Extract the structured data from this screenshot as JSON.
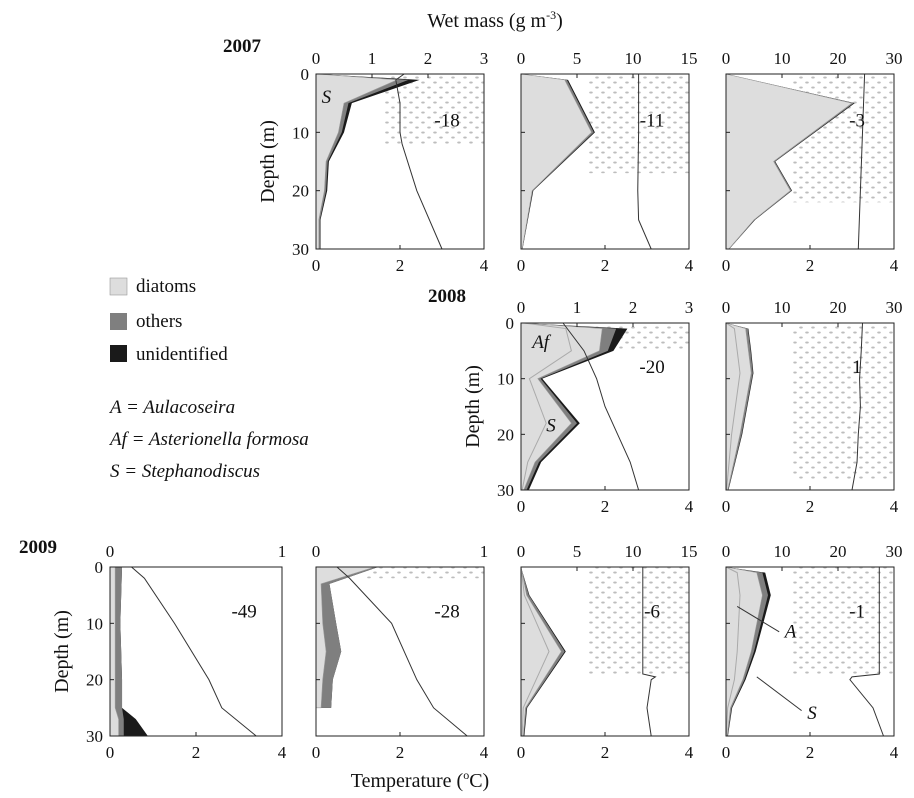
{
  "figure": {
    "x_top_label": "Wet mass (g m",
    "x_top_label_sup": "-3",
    "x_top_label_end": ")",
    "x_bottom_label": "Temperature (",
    "x_bottom_label_sup": "o",
    "x_bottom_label_end": "C)",
    "y_label": "Depth (m)",
    "years": [
      "2007",
      "2008",
      "2009"
    ]
  },
  "legend": {
    "items": [
      {
        "label": "diatoms",
        "color": "#dddddd"
      },
      {
        "label": "others",
        "color": "#7f7f7f"
      },
      {
        "label": "unidentified",
        "color": "#1a1a1a"
      }
    ]
  },
  "abbreviations": [
    {
      "abbr": "A",
      "name": "Aulacoseira"
    },
    {
      "abbr": "Af",
      "name": "Asterionella formosa"
    },
    {
      "abbr": "S",
      "name": "Stephanodiscus"
    }
  ],
  "colors": {
    "diatoms": "#dddddd",
    "others": "#7f7f7f",
    "unidentified": "#1a1a1a",
    "ice_dots": "#bdbdbd",
    "temperature_line": "#333333",
    "species_line": "#aaaaaa"
  },
  "chart_data": [
    {
      "panel": "2007-1",
      "type": "area",
      "year": "2007",
      "temp_xlim": [
        0,
        4
      ],
      "temp_ticks": [
        "0",
        "2",
        "4"
      ],
      "mass_xlim": [
        0,
        3
      ],
      "mass_ticks": [
        "0",
        "1",
        "2",
        "3"
      ],
      "ylim": [
        0,
        30
      ],
      "y_ticks": [
        "0",
        "10",
        "20",
        "30"
      ],
      "ice_shade_depth": [
        0,
        12
      ],
      "annotation": "-18",
      "species_labels": [
        {
          "text": "S",
          "mass": 0.1,
          "depth": 5
        }
      ],
      "depth": [
        0,
        1,
        5,
        10,
        15,
        20,
        25,
        30
      ],
      "diatoms_cum": [
        0,
        1.45,
        0.5,
        0.4,
        0.18,
        0.15,
        0.05,
        0.05
      ],
      "others_cum": [
        0,
        1.65,
        0.58,
        0.46,
        0.21,
        0.18,
        0.07,
        0.07
      ],
      "unidentified_cum": [
        0,
        1.85,
        0.64,
        0.5,
        0.23,
        0.2,
        0.08,
        0.08
      ],
      "temp_depth": [
        0,
        1,
        5,
        10,
        12,
        20,
        30
      ],
      "temperature": [
        2.1,
        1.9,
        2.0,
        2.0,
        2.05,
        2.4,
        3.0
      ]
    },
    {
      "panel": "2007-2",
      "type": "area",
      "year": "2007",
      "temp_xlim": [
        0,
        4
      ],
      "temp_ticks": [
        "0",
        "2",
        "4"
      ],
      "mass_xlim": [
        0,
        15
      ],
      "mass_ticks": [
        "0",
        "5",
        "10",
        "15"
      ],
      "ylim": [
        0,
        30
      ],
      "y_ticks": [
        "0",
        "10",
        "20",
        "30"
      ],
      "ice_shade_depth": [
        0,
        17
      ],
      "annotation": "-11",
      "depth": [
        0,
        1,
        10,
        20,
        30
      ],
      "diatoms_cum": [
        0,
        3.9,
        6.3,
        1.0,
        0.1
      ],
      "others_cum": [
        0,
        4.1,
        6.5,
        1.05,
        0.12
      ],
      "unidentified_cum": [
        0,
        4.2,
        6.6,
        1.1,
        0.14
      ],
      "temp_depth": [
        0,
        10,
        20,
        25,
        30
      ],
      "temperature": [
        2.8,
        2.8,
        2.78,
        2.8,
        3.1
      ]
    },
    {
      "panel": "2007-3",
      "type": "area",
      "year": "2007",
      "temp_xlim": [
        0,
        4
      ],
      "temp_ticks": [
        "0",
        "2",
        "4"
      ],
      "mass_xlim": [
        0,
        30
      ],
      "mass_ticks": [
        "0",
        "10",
        "20",
        "30"
      ],
      "ylim": [
        0,
        30
      ],
      "y_ticks": [
        "0",
        "10",
        "20",
        "30"
      ],
      "ice_shade_depth": [
        0,
        22
      ],
      "annotation": "-3",
      "depth": [
        0,
        5,
        15,
        20,
        25,
        30
      ],
      "diatoms_cum": [
        0,
        22.5,
        8.5,
        11.5,
        5.0,
        0.5
      ],
      "others_cum": [
        0,
        22.8,
        8.7,
        11.7,
        5.1,
        0.55
      ],
      "unidentified_cum": [
        0,
        23.0,
        8.8,
        11.8,
        5.2,
        0.6
      ],
      "temp_depth": [
        0,
        10,
        20,
        30
      ],
      "temperature": [
        3.3,
        3.25,
        3.2,
        3.15
      ]
    },
    {
      "panel": "2008-1",
      "type": "area",
      "year": "2008",
      "temp_xlim": [
        0,
        4
      ],
      "temp_ticks": [
        "0",
        "2",
        "4"
      ],
      "mass_xlim": [
        0,
        3
      ],
      "mass_ticks": [
        "0",
        "1",
        "2",
        "3"
      ],
      "ylim": [
        0,
        30
      ],
      "y_ticks": [
        "0",
        "10",
        "20",
        "30"
      ],
      "ice_shade_depth": [
        0,
        5
      ],
      "annotation": "-20",
      "species_labels": [
        {
          "text": "Af",
          "mass": 0.2,
          "depth": 4.5
        },
        {
          "text": "S",
          "mass": 0.45,
          "depth": 19.5
        }
      ],
      "depth": [
        0,
        1,
        5,
        10,
        18,
        25,
        30
      ],
      "diatoms_cum": [
        0,
        1.45,
        1.4,
        0.3,
        0.9,
        0.25,
        0.05
      ],
      "others_cum": [
        0,
        1.7,
        1.55,
        0.35,
        1.0,
        0.32,
        0.1
      ],
      "unidentified_cum": [
        0,
        1.9,
        1.65,
        0.38,
        1.05,
        0.36,
        0.14
      ],
      "species_line_mass": [
        0.05,
        0.8,
        0.9,
        0.15,
        0.45,
        0.12,
        0.02
      ],
      "temp_depth": [
        0,
        5,
        10,
        15,
        20,
        25,
        30
      ],
      "temperature": [
        1.0,
        1.5,
        1.8,
        2.0,
        2.3,
        2.6,
        2.8
      ]
    },
    {
      "panel": "2008-2",
      "type": "area",
      "year": "2008",
      "temp_xlim": [
        0,
        4
      ],
      "temp_ticks": [
        "0",
        "2",
        "4"
      ],
      "mass_xlim": [
        0,
        30
      ],
      "mass_ticks": [
        "0",
        "10",
        "20",
        "30"
      ],
      "ylim": [
        0,
        30
      ],
      "y_ticks": [
        "0",
        "10",
        "20",
        "30"
      ],
      "ice_shade_depth": [
        0,
        28
      ],
      "annotation": "1",
      "depth": [
        0,
        1,
        5,
        9,
        20,
        30
      ],
      "diatoms_cum": [
        0,
        3.5,
        4.0,
        4.5,
        2.5,
        0.3
      ],
      "others_cum": [
        0,
        3.9,
        4.4,
        4.8,
        2.8,
        0.4
      ],
      "unidentified_cum": [
        0,
        4.0,
        4.5,
        4.9,
        2.9,
        0.45
      ],
      "species_line_mass": [
        0,
        1.5,
        2.0,
        2.5,
        1.0,
        0.1
      ],
      "temp_depth": [
        0,
        5,
        10,
        15,
        20,
        25,
        30
      ],
      "temperature": [
        3.25,
        3.22,
        3.18,
        3.2,
        3.15,
        3.12,
        3.0
      ]
    },
    {
      "panel": "2009-1",
      "type": "area",
      "year": "2009",
      "temp_xlim": [
        0,
        4
      ],
      "temp_ticks": [
        "0",
        "2",
        "4"
      ],
      "mass_xlim": [
        0,
        1
      ],
      "mass_ticks": [
        "0",
        "1"
      ],
      "ylim": [
        0,
        30
      ],
      "y_ticks": [
        "0",
        "10",
        "20",
        "30"
      ],
      "ice_shade_depth": null,
      "annotation": "-49",
      "depth": [
        0,
        10,
        20,
        25,
        27,
        30
      ],
      "diatoms_cum": [
        0.03,
        0.03,
        0.03,
        0.03,
        0.05,
        0.05
      ],
      "others_cum": [
        0.07,
        0.06,
        0.07,
        0.07,
        0.08,
        0.08
      ],
      "unidentified_cum": [
        0.07,
        0.06,
        0.07,
        0.07,
        0.15,
        0.22
      ],
      "temp_depth": [
        0,
        2,
        10,
        20,
        25,
        30
      ],
      "temperature": [
        0.5,
        0.8,
        1.5,
        2.3,
        2.6,
        3.4
      ]
    },
    {
      "panel": "2009-2",
      "type": "area",
      "year": "2009",
      "temp_xlim": [
        0,
        4
      ],
      "temp_ticks": [
        "0",
        "2",
        "4"
      ],
      "mass_xlim": [
        0,
        1
      ],
      "mass_ticks": [
        "0",
        "1"
      ],
      "ylim": [
        0,
        30
      ],
      "y_ticks": [
        "0",
        "10",
        "20",
        "30"
      ],
      "ice_shade_depth": [
        0,
        2
      ],
      "annotation": "-28",
      "depth": [
        0,
        3,
        10,
        15,
        20,
        25
      ],
      "diatoms_cum": [
        0.35,
        0.03,
        0.04,
        0.06,
        0.04,
        0.03
      ],
      "others_cum": [
        0.37,
        0.08,
        0.12,
        0.15,
        0.1,
        0.09
      ],
      "unidentified_cum": [
        0.37,
        0.08,
        0.12,
        0.15,
        0.1,
        0.09
      ],
      "temp_depth": [
        0,
        2,
        10,
        20,
        25,
        30
      ],
      "temperature": [
        0.5,
        0.8,
        1.8,
        2.4,
        2.8,
        3.6
      ]
    },
    {
      "panel": "2009-3",
      "type": "area",
      "year": "2009",
      "temp_xlim": [
        0,
        4
      ],
      "temp_ticks": [
        "0",
        "2",
        "4"
      ],
      "mass_xlim": [
        0,
        15
      ],
      "mass_ticks": [
        "0",
        "5",
        "10",
        "15"
      ],
      "ylim": [
        0,
        30
      ],
      "y_ticks": [
        "0",
        "10",
        "20",
        "30"
      ],
      "ice_shade_depth": [
        0,
        19
      ],
      "annotation": "-6",
      "depth": [
        0,
        5,
        15,
        25,
        30
      ],
      "diatoms_cum": [
        0,
        0.5,
        3.6,
        0.4,
        0.2
      ],
      "others_cum": [
        0,
        0.7,
        3.9,
        0.5,
        0.25
      ],
      "unidentified_cum": [
        0,
        0.75,
        4.0,
        0.55,
        0.3
      ],
      "species_line_mass": [
        0,
        0.3,
        2.5,
        0.2,
        0.1
      ],
      "temp_depth": [
        0,
        19,
        19.5,
        20,
        25,
        30
      ],
      "temperature": [
        2.9,
        2.9,
        3.2,
        3.1,
        3.0,
        3.1
      ]
    },
    {
      "panel": "2009-4",
      "type": "area",
      "year": "2009",
      "temp_xlim": [
        0,
        4
      ],
      "temp_ticks": [
        "0",
        "2",
        "4"
      ],
      "mass_xlim": [
        0,
        30
      ],
      "mass_ticks": [
        "0",
        "10",
        "20",
        "30"
      ],
      "ylim": [
        0,
        30
      ],
      "y_ticks": [
        "0",
        "10",
        "20",
        "30"
      ],
      "ice_shade_depth": [
        0,
        19
      ],
      "annotation": "-1",
      "species_labels": [
        {
          "text": "A",
          "mass": 10.5,
          "depth": 12.5
        },
        {
          "text": "S",
          "mass": 14.5,
          "depth": 27
        }
      ],
      "callouts": [
        {
          "from_mass": 2.0,
          "from_depth": 7,
          "to_mass": 9.5,
          "to_depth": 11.5
        },
        {
          "from_mass": 5.5,
          "from_depth": 19.5,
          "to_mass": 13.5,
          "to_depth": 25.5
        }
      ],
      "depth": [
        0,
        1,
        5,
        15,
        20,
        25,
        30
      ],
      "diatoms_cum": [
        0,
        5.5,
        6.5,
        4.5,
        3.0,
        0.8,
        0.2
      ],
      "others_cum": [
        0,
        6.5,
        7.5,
        5.0,
        3.3,
        1.0,
        0.3
      ],
      "unidentified_cum": [
        0,
        7.0,
        8.0,
        5.3,
        3.5,
        1.1,
        0.35
      ],
      "species_line_mass": [
        0,
        2.0,
        2.5,
        2.0,
        1.5,
        0.3,
        0.05
      ],
      "temp_depth": [
        0,
        19,
        19.5,
        20,
        25,
        30
      ],
      "temperature": [
        3.65,
        3.65,
        3.0,
        2.95,
        3.5,
        3.75
      ]
    }
  ]
}
